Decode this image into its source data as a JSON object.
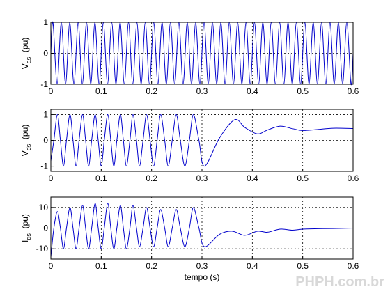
{
  "chart_data": [
    {
      "type": "line",
      "ylabel": {
        "main": "V",
        "sub": "as",
        "unit": "(pu)"
      },
      "color": "#0000cc",
      "xlim": [
        0,
        0.6
      ],
      "xticks": [
        0,
        0.1,
        0.2,
        0.3,
        0.4,
        0.5,
        0.6
      ],
      "ylim": [
        -1,
        1
      ],
      "yticks": [
        -1,
        0,
        1
      ],
      "grid": true,
      "x": [
        0,
        0.0042,
        0.0125,
        0.0208,
        0.0292,
        0.0375,
        0.0458,
        0.0542,
        0.0625,
        0.0708,
        0.0792,
        0.0875,
        0.0958,
        0.1042,
        0.1125,
        0.1208,
        0.1292,
        0.1375,
        0.1458,
        0.1542,
        0.1625,
        0.1708,
        0.1792,
        0.1875,
        0.1958,
        0.2042,
        0.2125,
        0.2208,
        0.2292,
        0.2375,
        0.2458,
        0.2542,
        0.2625,
        0.2708,
        0.2792,
        0.2875,
        0.2958,
        0.3042,
        0.3125,
        0.3208,
        0.3292,
        0.3375,
        0.3458,
        0.3542,
        0.3625,
        0.3708,
        0.3792,
        0.3875,
        0.3958,
        0.4042,
        0.4125,
        0.4208,
        0.4292,
        0.4375,
        0.4458,
        0.4542,
        0.4625,
        0.4708,
        0.4792,
        0.4875,
        0.4958,
        0.5042,
        0.5125,
        0.5208,
        0.5292,
        0.5375,
        0.5458,
        0.5542,
        0.5625,
        0.5708,
        0.5792,
        0.5875,
        0.5958,
        0.6
      ],
      "values": [
        0,
        1,
        -1,
        1,
        -1,
        1,
        -1,
        1,
        -1,
        1,
        -1,
        1,
        -1,
        1,
        -1,
        1,
        -1,
        1,
        -1,
        1,
        -1,
        1,
        -1,
        1,
        -1,
        1,
        -1,
        1,
        -1,
        1,
        -1,
        1,
        -1,
        1,
        -1,
        1,
        -1,
        1,
        -1,
        1,
        -1,
        1,
        -1,
        1,
        -1,
        1,
        -1,
        1,
        -1,
        1,
        -1,
        1,
        -1,
        1,
        -1,
        1,
        -1,
        1,
        -1,
        1,
        -1,
        1,
        -1,
        1,
        -1,
        1,
        -1,
        1,
        -1,
        1,
        -1,
        1,
        -1,
        0
      ]
    },
    {
      "type": "line",
      "ylabel": {
        "main": "V",
        "sub": "ds",
        "unit": "(pu)"
      },
      "color": "#0000cc",
      "xlim": [
        0,
        0.6
      ],
      "xticks": [
        0,
        0.1,
        0.2,
        0.3,
        0.4,
        0.5,
        0.6
      ],
      "ylim": [
        -1.2,
        1.2
      ],
      "yticks": [
        -1,
        0,
        1
      ],
      "grid": true,
      "x": [
        0,
        0.006,
        0.013,
        0.019,
        0.025,
        0.031,
        0.038,
        0.044,
        0.05,
        0.056,
        0.063,
        0.069,
        0.075,
        0.081,
        0.088,
        0.094,
        0.1,
        0.106,
        0.113,
        0.119,
        0.125,
        0.131,
        0.138,
        0.144,
        0.15,
        0.157,
        0.163,
        0.17,
        0.176,
        0.183,
        0.19,
        0.197,
        0.204,
        0.211,
        0.218,
        0.226,
        0.233,
        0.241,
        0.249,
        0.257,
        0.266,
        0.275,
        0.283,
        0.294,
        0.305,
        0.335,
        0.365,
        0.385,
        0.41,
        0.43,
        0.455,
        0.48,
        0.5,
        0.53,
        0.56,
        0.6
      ],
      "values": [
        -0.8,
        0,
        1,
        0,
        -1,
        0,
        1,
        0,
        -1,
        0,
        1,
        0,
        -1,
        0,
        1,
        0,
        -1,
        0,
        1,
        0,
        -1,
        0,
        1,
        0,
        -1,
        0,
        1,
        0,
        -1,
        0,
        1,
        0,
        -1,
        0,
        1,
        0,
        -1,
        0,
        1,
        0,
        -1,
        0,
        1,
        0,
        -1,
        0.1,
        0.8,
        0.5,
        0.25,
        0.4,
        0.55,
        0.45,
        0.38,
        0.42,
        0.47,
        0.46
      ]
    },
    {
      "type": "line",
      "ylabel": {
        "main": "I",
        "sub": "ds",
        "unit": "(pu)"
      },
      "xlabel": "tempo (s)",
      "color": "#0000cc",
      "xlim": [
        0,
        0.6
      ],
      "xticks": [
        0,
        0.1,
        0.2,
        0.3,
        0.4,
        0.5,
        0.6
      ],
      "ylim": [
        -15,
        15
      ],
      "yticks": [
        -10,
        0,
        10
      ],
      "grid": true,
      "x": [
        0,
        0.006,
        0.013,
        0.019,
        0.025,
        0.031,
        0.038,
        0.044,
        0.05,
        0.056,
        0.063,
        0.069,
        0.075,
        0.081,
        0.088,
        0.094,
        0.1,
        0.106,
        0.113,
        0.119,
        0.125,
        0.131,
        0.138,
        0.144,
        0.15,
        0.157,
        0.163,
        0.17,
        0.176,
        0.183,
        0.19,
        0.197,
        0.204,
        0.211,
        0.218,
        0.226,
        0.233,
        0.241,
        0.249,
        0.257,
        0.266,
        0.275,
        0.283,
        0.294,
        0.305,
        0.335,
        0.36,
        0.385,
        0.41,
        0.43,
        0.455,
        0.48,
        0.5,
        0.53,
        0.56,
        0.6
      ],
      "values": [
        -14,
        0,
        8,
        0,
        -10,
        0,
        10,
        0,
        -10,
        0,
        11,
        0,
        -10,
        0,
        12,
        0,
        -10,
        0,
        12,
        0,
        -10,
        0,
        11,
        0,
        -10,
        0,
        11,
        0,
        -9,
        0,
        10,
        0,
        -9,
        0,
        9,
        0,
        -9,
        0,
        9,
        0,
        -9,
        0,
        10,
        0,
        -9,
        -3,
        -1.5,
        -3.5,
        -1.5,
        -2,
        -0.5,
        -1,
        -0.5,
        -0.3,
        -0.2,
        0
      ]
    }
  ],
  "watermark": "PHPH.com.br"
}
